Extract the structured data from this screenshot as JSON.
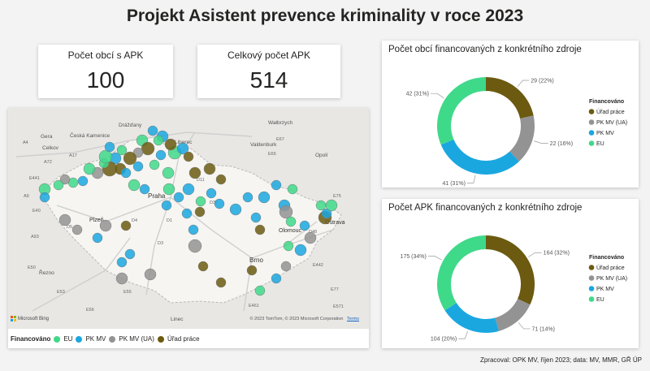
{
  "page": {
    "title": "Projekt Asistent prevence kriminality v roce 2023",
    "footer": "Zpracoval: OPK MV, říjen 2023; data: MV, MMR, GŘ ÚP"
  },
  "kpis": [
    {
      "label": "Počet obcí s APK",
      "value": "100"
    },
    {
      "label": "Celkový počet APK",
      "value": "514"
    }
  ],
  "colors": {
    "urad_prace": "#6b5a10",
    "pk_mv_ua": "#939393",
    "pk_mv": "#1aa7e0",
    "eu": "#3fd98a"
  },
  "chart_data": [
    {
      "type": "pie",
      "title": "Počet obcí financovaných z konkrétního zdroje",
      "legend_title": "Financováno",
      "legend_position": "right",
      "donut": true,
      "slices": [
        {
          "label": "Úřad práce",
          "value": 29,
          "display": "29 (22%)",
          "color": "#6b5a10"
        },
        {
          "label": "PK MV (UA)",
          "value": 22,
          "display": "22 (16%)",
          "color": "#939393"
        },
        {
          "label": "PK MV",
          "value": 41,
          "display": "41 (31%)",
          "color": "#1aa7e0"
        },
        {
          "label": "EU",
          "value": 42,
          "display": "42 (31%)",
          "color": "#3fd98a"
        }
      ]
    },
    {
      "type": "pie",
      "title": "Počet APK financovaných z konkrétního zdroje",
      "legend_title": "Financováno",
      "legend_position": "right",
      "donut": true,
      "slices": [
        {
          "label": "Úřad práce",
          "value": 164,
          "display": "164 (32%)",
          "color": "#6b5a10"
        },
        {
          "label": "PK MV (UA)",
          "value": 71,
          "display": "71 (14%)",
          "color": "#939393"
        },
        {
          "label": "PK MV",
          "value": 104,
          "display": "104 (20%)",
          "color": "#1aa7e0"
        },
        {
          "label": "EU",
          "value": 175,
          "display": "175 (34%)",
          "color": "#3fd98a"
        }
      ]
    }
  ],
  "map": {
    "labels": [
      "Drážďany",
      "Česká Kamenice",
      "Děčín",
      "Liberec",
      "Gera",
      "Celkov",
      "Wałbrzych",
      "Walbrzych",
      "Valdenburk",
      "Opolí",
      "Praha",
      "Plzeň",
      "Brno",
      "Olomouc",
      "Ostrava",
      "Linec",
      "Řezno",
      "A4",
      "A17",
      "A72",
      "A9",
      "E441",
      "A93",
      "E50",
      "E53",
      "D1",
      "D4",
      "D3",
      "D5",
      "D35",
      "D11",
      "D48",
      "E55",
      "E65",
      "E67",
      "E75",
      "E77",
      "E571",
      "E461",
      "E442",
      "E40",
      "E56"
    ],
    "legend_title": "Financováno",
    "legend": [
      {
        "label": "EU",
        "color": "#3fd98a"
      },
      {
        "label": "PK MV",
        "color": "#1aa7e0"
      },
      {
        "label": "PK MV (UA)",
        "color": "#939393"
      },
      {
        "label": "Úřad práce",
        "color": "#6b5a10"
      }
    ],
    "copyright": "© 2023 TomTom, © 2023 Microsoft Corporation",
    "terms_link": "Terms",
    "brand": "Microsoft Bing"
  }
}
